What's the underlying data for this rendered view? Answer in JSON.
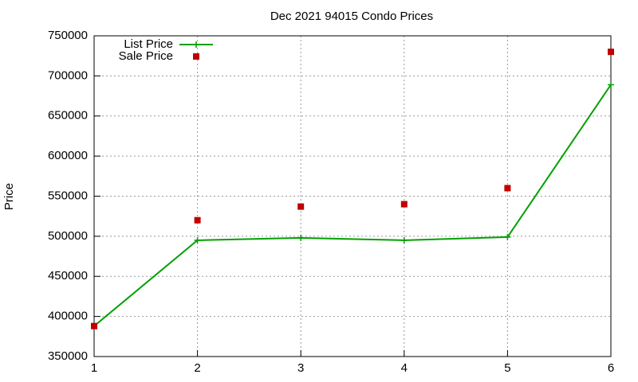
{
  "chart_data": {
    "type": "line",
    "title": "Dec 2021 94015 Condo Prices",
    "ylabel": "Price",
    "x": [
      1,
      2,
      3,
      4,
      5,
      6
    ],
    "series": [
      {
        "name": "List Price",
        "color": "#00a000",
        "style": "linespoints",
        "values": [
          388000,
          495000,
          498000,
          495000,
          499000,
          689000
        ]
      },
      {
        "name": "Sale Price",
        "color": "#c00000",
        "style": "points",
        "values": [
          388000,
          520000,
          537000,
          540000,
          560000,
          730000
        ]
      }
    ],
    "xlim": [
      1,
      6
    ],
    "xticks": [
      1,
      2,
      3,
      4,
      5,
      6
    ],
    "ylim": [
      350000,
      750000
    ],
    "yticks": [
      350000,
      400000,
      450000,
      500000,
      550000,
      600000,
      650000,
      700000,
      750000
    ],
    "grid": true,
    "legend": "top-left"
  }
}
